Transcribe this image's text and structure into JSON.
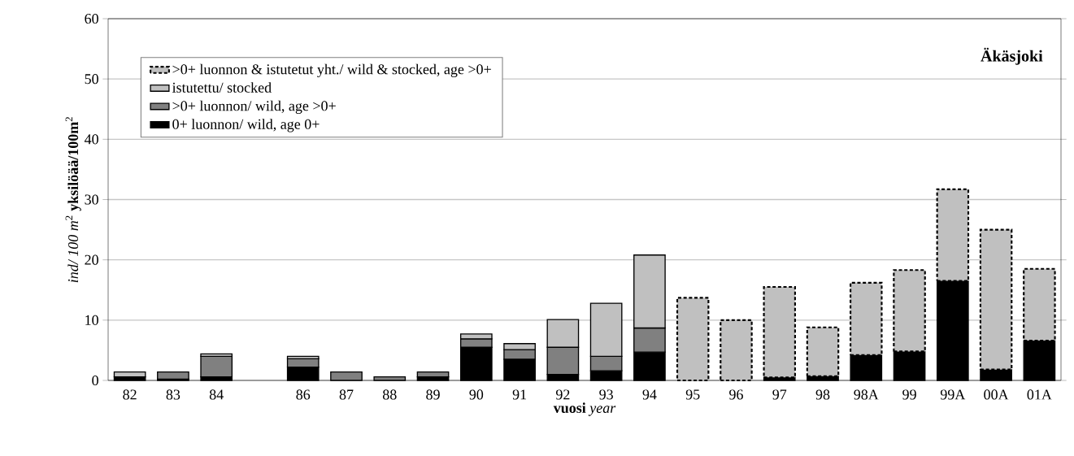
{
  "chart_data": {
    "type": "bar",
    "stacked": true,
    "xlabel": "**vuosi** *year*",
    "ylabel": "*ind/ 100 m*$^{2}$ **yksilöää/100m**$^{2}$",
    "annotations": [
      "Äkäsjoki"
    ],
    "categories": [
      "82",
      "83",
      "84",
      null,
      "86",
      "87",
      "88",
      "89",
      "90",
      "91",
      "92",
      "93",
      "94",
      "95",
      "96",
      "97",
      "98",
      "98A",
      "99",
      "99A",
      "00A",
      "01A"
    ],
    "series": [
      {
        "name": "0+ luonnon/ wild, age 0+",
        "color": "#000000",
        "values": [
          0.6,
          0.2,
          0.6,
          null,
          2.2,
          null,
          null,
          0.6,
          5.5,
          3.5,
          1.0,
          1.6,
          4.7,
          null,
          null,
          0.5,
          0.7,
          4.2,
          4.8,
          16.5,
          1.8,
          6.6
        ]
      },
      {
        "name": ">0+ luonnon/ wild, age >0+",
        "color": "#808080",
        "values": [
          null,
          1.2,
          3.4,
          null,
          1.4,
          1.4,
          0.6,
          0.8,
          1.4,
          1.6,
          4.5,
          2.4,
          4.0,
          null,
          null,
          null,
          null,
          null,
          null,
          null,
          null,
          null
        ]
      },
      {
        "name": "istutettu/ stocked",
        "color": "#c0c0c0",
        "values": [
          0.8,
          null,
          0.4,
          null,
          0.4,
          null,
          null,
          null,
          0.8,
          1.0,
          4.6,
          8.8,
          12.1,
          null,
          null,
          null,
          null,
          null,
          null,
          null,
          null,
          null
        ]
      },
      {
        "name": ">0+ luonnon & istutetut yht./ wild & stocked, age >0+",
        "color": "#c0c0c0",
        "line_style": "dashed",
        "values": [
          null,
          null,
          null,
          null,
          null,
          null,
          null,
          null,
          null,
          null,
          null,
          null,
          null,
          13.7,
          10.0,
          15.0,
          8.1,
          12.0,
          13.5,
          15.2,
          23.2,
          11.9
        ]
      }
    ],
    "ylim": [
      0,
      60
    ],
    "yticks": [
      0,
      10,
      20,
      30,
      40,
      50,
      60
    ],
    "grid": "y",
    "legend": "top left"
  }
}
